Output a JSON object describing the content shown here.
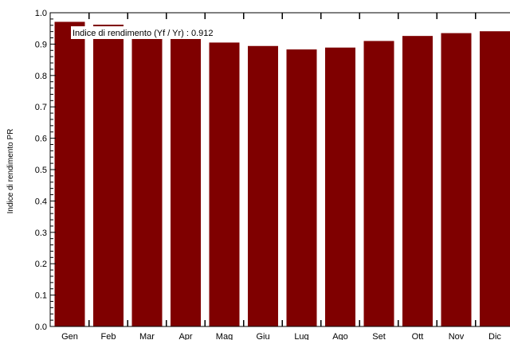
{
  "chart_data": {
    "type": "bar",
    "title": "",
    "xlabel": "",
    "ylabel": "Indice   di   rendimento   PR",
    "categories": [
      "Gen",
      "Feb",
      "Mar",
      "Apr",
      "Mag",
      "Giu",
      "Lug",
      "Ago",
      "Set",
      "Ott",
      "Nov",
      "Dic"
    ],
    "series": [
      {
        "values": [
          0.971,
          0.962,
          0.946,
          0.934,
          0.905,
          0.894,
          0.883,
          0.889,
          0.91,
          0.926,
          0.935,
          0.941
        ]
      }
    ],
    "ylim": [
      0,
      1.0
    ],
    "yticks": [
      "0.0",
      "0.1",
      "0.2",
      "0.3",
      "0.4",
      "0.5",
      "0.6",
      "0.7",
      "0.8",
      "0.9",
      "1.0"
    ],
    "grid": false,
    "legend": {
      "placement": "top-left",
      "label": "Indice di rendimento (Yf / Yr) :  0.912",
      "color": "#7f0000"
    },
    "colors": {
      "bar": "#7f0000",
      "axis": "#000000"
    }
  }
}
